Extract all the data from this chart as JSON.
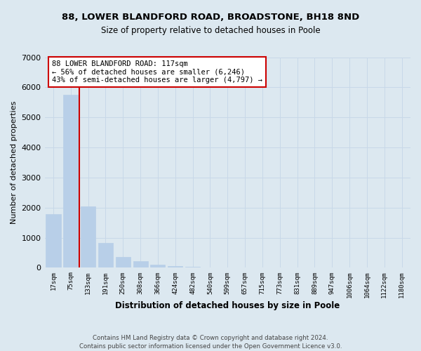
{
  "title1": "88, LOWER BLANDFORD ROAD, BROADSTONE, BH18 8ND",
  "title2": "Size of property relative to detached houses in Poole",
  "xlabel": "Distribution of detached houses by size in Poole",
  "ylabel": "Number of detached properties",
  "bar_labels": [
    "17sqm",
    "75sqm",
    "133sqm",
    "191sqm",
    "250sqm",
    "308sqm",
    "366sqm",
    "424sqm",
    "482sqm",
    "540sqm",
    "599sqm",
    "657sqm",
    "715sqm",
    "773sqm",
    "831sqm",
    "889sqm",
    "947sqm",
    "1006sqm",
    "1064sqm",
    "1122sqm",
    "1180sqm"
  ],
  "bar_values": [
    1780,
    5750,
    2050,
    830,
    370,
    220,
    110,
    60,
    30,
    15,
    8,
    4,
    2,
    0,
    0,
    0,
    0,
    0,
    0,
    0,
    0
  ],
  "bar_color": "#b8cfe8",
  "ylim": [
    0,
    7000
  ],
  "yticks": [
    0,
    1000,
    2000,
    3000,
    4000,
    5000,
    6000,
    7000
  ],
  "property_line_color": "#cc0000",
  "annotation_title": "88 LOWER BLANDFORD ROAD: 117sqm",
  "annotation_line1": "← 56% of detached houses are smaller (6,246)",
  "annotation_line2": "43% of semi-detached houses are larger (4,797) →",
  "annotation_box_color": "#ffffff",
  "annotation_box_edge": "#cc0000",
  "grid_color": "#c8d8e8",
  "background_color": "#dce8f0",
  "footer1": "Contains HM Land Registry data © Crown copyright and database right 2024.",
  "footer2": "Contains public sector information licensed under the Open Government Licence v3.0."
}
